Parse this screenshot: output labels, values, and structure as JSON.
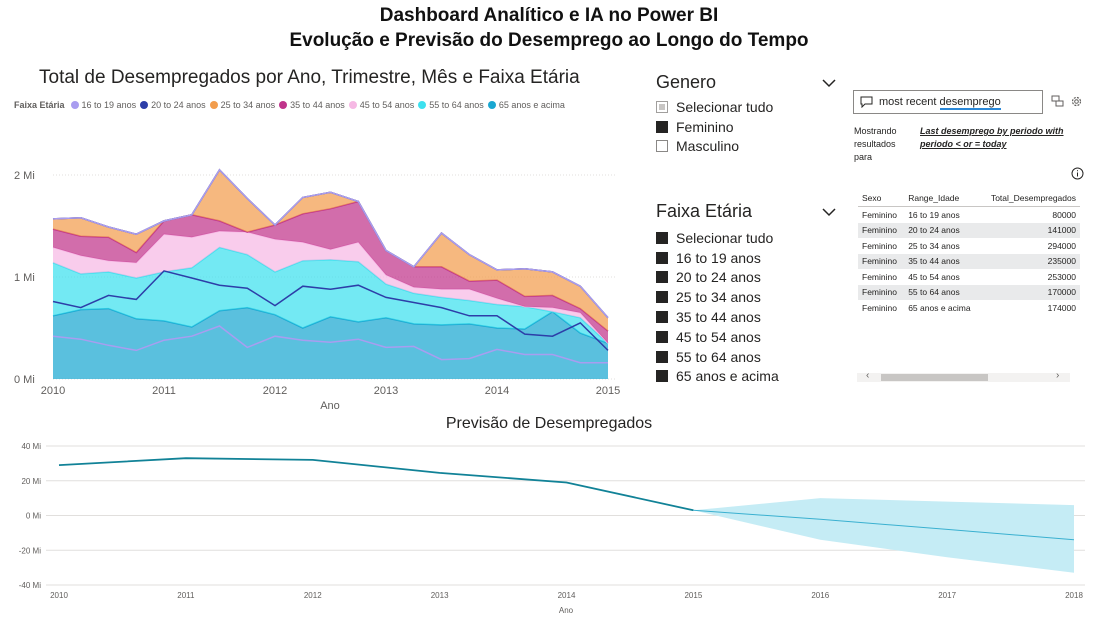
{
  "header": {
    "title_line1": "Dashboard Analítico e IA no Power BI",
    "title_line2": "Evolução e Previsão do Desemprego ao Longo do Tempo"
  },
  "area_chart": {
    "title": "Total de Desempregados por Ano, Trimestre, Mês e Faixa Etária",
    "legend_title": "Faixa Etária",
    "xlabel": "Ano",
    "x_ticks": [
      "2010",
      "2011",
      "2012",
      "2013",
      "2014",
      "2015"
    ],
    "y_ticks": [
      "2 Mi",
      "1 Mi",
      "0 Mi"
    ]
  },
  "forecast_chart": {
    "title": "Previsão de Desempregados",
    "xlabel": "Ano",
    "x_ticks": [
      "2010",
      "2011",
      "2012",
      "2013",
      "2014",
      "2015",
      "2016",
      "2017",
      "2018"
    ],
    "y_ticks": [
      "40 Mi",
      "20 Mi",
      "0 Mi",
      "-20 Mi",
      "-40 Mi"
    ]
  },
  "chart_data": [
    {
      "type": "area",
      "title": "Total de Desempregados por Ano, Trimestre, Mês e Faixa Etária",
      "xlabel": "Ano",
      "ylabel": "",
      "ylim": [
        0,
        2000000
      ],
      "x": [
        2010.0,
        2010.25,
        2010.5,
        2010.75,
        2011.0,
        2011.25,
        2011.5,
        2011.75,
        2012.0,
        2012.25,
        2012.5,
        2012.75,
        2013.0,
        2013.25,
        2013.5,
        2013.75,
        2014.0,
        2014.25,
        2014.5,
        2014.75,
        2015.0
      ],
      "stacked": true,
      "legend_position": "top-left",
      "series": [
        {
          "name": "65 anos e acima",
          "color": "#1aa7d1",
          "values": [
            620000,
            680000,
            690000,
            590000,
            570000,
            510000,
            670000,
            700000,
            630000,
            500000,
            610000,
            560000,
            600000,
            540000,
            530000,
            540000,
            500000,
            490000,
            660000,
            450000,
            350000
          ]
        },
        {
          "name": "55 to 64 anos",
          "color": "#3de1ef",
          "values": [
            520000,
            350000,
            360000,
            400000,
            480000,
            580000,
            620000,
            520000,
            420000,
            660000,
            560000,
            590000,
            330000,
            300000,
            270000,
            230000,
            230000,
            220000,
            0,
            150000,
            0
          ]
        },
        {
          "name": "45 to 54 anos",
          "color": "#f6b8e4",
          "values": [
            150000,
            180000,
            110000,
            150000,
            370000,
            300000,
            160000,
            220000,
            320000,
            180000,
            100000,
            190000,
            90000,
            60000,
            80000,
            110000,
            60000,
            0,
            40000,
            50000,
            0
          ]
        },
        {
          "name": "35 to 44 anos",
          "color": "#c0348b",
          "values": [
            180000,
            190000,
            230000,
            100000,
            130000,
            220000,
            100000,
            0,
            140000,
            280000,
            400000,
            400000,
            240000,
            200000,
            220000,
            80000,
            180000,
            100000,
            120000,
            40000,
            120000
          ]
        },
        {
          "name": "25 to 34 anos",
          "color": "#f29d4d",
          "values": [
            100000,
            180000,
            100000,
            180000,
            0,
            0,
            500000,
            330000,
            0,
            160000,
            160000,
            0,
            0,
            0,
            330000,
            260000,
            100000,
            270000,
            230000,
            220000,
            130000
          ]
        },
        {
          "name": "20 to 24 anos",
          "color": "#2d3ea8",
          "values": [
            0,
            0,
            0,
            0,
            0,
            0,
            0,
            0,
            0,
            0,
            0,
            0,
            0,
            0,
            0,
            0,
            0,
            0,
            0,
            0,
            0
          ]
        },
        {
          "name": "16 to 19 anos",
          "color": "#a99df0",
          "values": [
            0,
            0,
            0,
            0,
            0,
            0,
            0,
            0,
            0,
            0,
            0,
            0,
            0,
            0,
            0,
            0,
            0,
            0,
            0,
            0,
            0
          ]
        }
      ],
      "line_series": [
        {
          "name": "20 to 24 anos",
          "color": "#2d3ea8",
          "values": [
            760000,
            700000,
            820000,
            780000,
            1060000,
            990000,
            920000,
            890000,
            720000,
            910000,
            880000,
            920000,
            800000,
            750000,
            700000,
            620000,
            620000,
            440000,
            420000,
            550000,
            280000
          ]
        },
        {
          "name": "16 to 19 anos",
          "color": "#a99df0",
          "values": [
            420000,
            390000,
            330000,
            280000,
            380000,
            420000,
            520000,
            310000,
            420000,
            380000,
            360000,
            390000,
            310000,
            320000,
            190000,
            200000,
            290000,
            240000,
            240000,
            160000,
            160000
          ]
        }
      ]
    },
    {
      "type": "line",
      "title": "Previsão de Desempregados",
      "xlabel": "Ano",
      "ylabel": "",
      "ylim": [
        -40000000,
        40000000
      ],
      "x": [
        2010,
        2011,
        2012,
        2013,
        2014,
        2015
      ],
      "series": [
        {
          "name": "",
          "color": "#118297",
          "values": [
            29000000,
            33000000,
            32000000,
            24500000,
            19000000,
            3000000
          ]
        }
      ],
      "forecast": {
        "x": [
          2015,
          2016,
          2017,
          2018
        ],
        "values": [
          3000000,
          -2200000,
          -8000000,
          -14000000
        ],
        "upper": [
          3000000,
          10000000,
          8000000,
          6000000
        ],
        "lower": [
          3000000,
          -14000000,
          -24000000,
          -33000000
        ],
        "line_color": "#3ab0d0",
        "band_color": "#c5ecf5"
      }
    }
  ],
  "legend": {
    "items": [
      {
        "label": "16 to 19 anos",
        "color": "#a99df0"
      },
      {
        "label": "20 to 24 anos",
        "color": "#2d3ea8"
      },
      {
        "label": "25 to 34 anos",
        "color": "#f29d4d"
      },
      {
        "label": "35 to 44 anos",
        "color": "#c0348b"
      },
      {
        "label": "45 to 54 anos",
        "color": "#f6b8e4"
      },
      {
        "label": "55 to 64 anos",
        "color": "#3de1ef"
      },
      {
        "label": "65 anos e acima",
        "color": "#1aa7d1"
      }
    ]
  },
  "slicer_genero": {
    "title": "Genero",
    "options": [
      {
        "label": "Selecionar tudo",
        "state": "partial"
      },
      {
        "label": "Feminino",
        "state": "checked"
      },
      {
        "label": "Masculino",
        "state": "unchecked"
      }
    ]
  },
  "slicer_faixa": {
    "title": "Faixa Etária",
    "options": [
      {
        "label": "Selecionar tudo",
        "state": "checked"
      },
      {
        "label": "16 to 19 anos",
        "state": "checked"
      },
      {
        "label": "20 to 24 anos",
        "state": "checked"
      },
      {
        "label": "25 to 34 anos",
        "state": "checked"
      },
      {
        "label": "35 to 44 anos",
        "state": "checked"
      },
      {
        "label": "45 to 54 anos",
        "state": "checked"
      },
      {
        "label": "55 to 64 anos",
        "state": "checked"
      },
      {
        "label": "65 anos e acima",
        "state": "checked"
      }
    ]
  },
  "qa": {
    "query_prefix": "most recent ",
    "query_term": "desemprego",
    "showing_label": "Mostrando resultados para",
    "interpretation": "Last desemprego by periodo with periodo < or = today",
    "table": {
      "headers": [
        "Sexo",
        "Range_Idade",
        "Total_Desempregados"
      ],
      "rows": [
        [
          "Feminino",
          "16 to 19 anos",
          "80000"
        ],
        [
          "Feminino",
          "20 to 24 anos",
          "141000"
        ],
        [
          "Feminino",
          "25 to 34 anos",
          "294000"
        ],
        [
          "Feminino",
          "35 to 44 anos",
          "235000"
        ],
        [
          "Feminino",
          "45 to 54 anos",
          "253000"
        ],
        [
          "Feminino",
          "55 to 64 anos",
          "170000"
        ],
        [
          "Feminino",
          "65 anos e acima",
          "174000"
        ]
      ]
    }
  }
}
